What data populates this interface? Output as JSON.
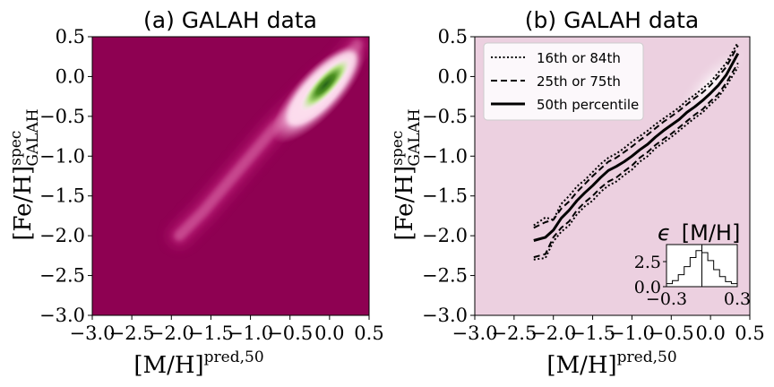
{
  "chart_data": [
    {
      "type": "heatmap",
      "title": "(a) GALAH data",
      "xlabel": "[M/H]",
      "xlabel_sup": "pred,50",
      "ylabel": "[Fe/H]",
      "ylabel_sup": "spec",
      "ylabel_sub": "GALAH",
      "xlim": [
        -3.0,
        0.5
      ],
      "ylim": [
        -3.0,
        0.5
      ],
      "xticks": [
        "−3.0",
        "−2.5",
        "−2.0",
        "−1.5",
        "−1.0",
        "−0.5",
        "0.0",
        "0.5"
      ],
      "yticks": [
        "−3.0",
        "−2.5",
        "−2.0",
        "−1.5",
        "−1.0",
        "−0.5",
        "0.0",
        "0.5"
      ],
      "xtick_values": [
        -3.0,
        -2.5,
        -2.0,
        -1.5,
        -1.0,
        -0.5,
        0.0,
        0.5
      ],
      "ytick_values": [
        -3.0,
        -2.5,
        -2.0,
        -1.5,
        -1.0,
        -0.5,
        0.0,
        0.5
      ],
      "colormap": "PiYG",
      "background_color": "#8e0152",
      "density_ridge": {
        "x": [
          -1.9,
          -1.6,
          -1.3,
          -1.0,
          -0.7,
          -0.4,
          -0.1,
          0.1,
          0.35
        ],
        "y": [
          -2.0,
          -1.7,
          -1.35,
          -1.0,
          -0.65,
          -0.35,
          -0.05,
          0.1,
          0.4
        ]
      },
      "density_peak": {
        "x": -0.05,
        "y": -0.1
      }
    },
    {
      "type": "line",
      "title": "(b) GALAH data",
      "xlabel": "[M/H]",
      "xlabel_sup": "pred,50",
      "ylabel": "[Fe/H]",
      "ylabel_sup": "spec",
      "ylabel_sub": "GALAH",
      "xlim": [
        -3.0,
        0.5
      ],
      "ylim": [
        -3.0,
        0.5
      ],
      "xticks": [
        "−3.0",
        "−2.5",
        "−2.0",
        "−1.5",
        "−1.0",
        "−0.5",
        "0.0",
        "0.5"
      ],
      "yticks": [
        "−3.0",
        "−2.5",
        "−2.0",
        "−1.5",
        "−1.0",
        "−0.5",
        "0.0",
        "0.5"
      ],
      "xtick_values": [
        -3.0,
        -2.5,
        -2.0,
        -1.5,
        -1.0,
        -0.5,
        0.0,
        0.5
      ],
      "ytick_values": [
        -3.0,
        -2.5,
        -2.0,
        -1.5,
        -1.0,
        -0.5,
        0.0,
        0.5
      ],
      "background_color": "#ecd0e0",
      "legend_position": "upper-left",
      "x": [
        -2.25,
        -2.1,
        -2.0,
        -1.9,
        -1.8,
        -1.7,
        -1.6,
        -1.5,
        -1.4,
        -1.3,
        -1.2,
        -1.1,
        -1.0,
        -0.9,
        -0.8,
        -0.7,
        -0.6,
        -0.5,
        -0.4,
        -0.3,
        -0.2,
        -0.1,
        0.0,
        0.1,
        0.2,
        0.35
      ],
      "series": [
        {
          "name": "16th or 84th",
          "style": "dotted",
          "values": [
            -1.87,
            -1.77,
            -1.8,
            -1.6,
            -1.5,
            -1.38,
            -1.3,
            -1.2,
            -1.1,
            -1.02,
            -0.97,
            -0.9,
            -0.82,
            -0.75,
            -0.68,
            -0.6,
            -0.53,
            -0.46,
            -0.39,
            -0.3,
            -0.23,
            -0.15,
            -0.07,
            0.05,
            0.17,
            0.43
          ]
        },
        {
          "name": "16th or 84th",
          "style": "dotted",
          "values": [
            -2.3,
            -2.28,
            -2.07,
            -1.95,
            -1.87,
            -1.73,
            -1.63,
            -1.56,
            -1.45,
            -1.37,
            -1.32,
            -1.24,
            -1.17,
            -1.07,
            -1.0,
            -0.9,
            -0.83,
            -0.76,
            -0.68,
            -0.6,
            -0.52,
            -0.45,
            -0.35,
            -0.26,
            -0.12,
            0.12
          ]
        },
        {
          "name": "25th or 75th",
          "style": "dashed",
          "values": [
            -1.9,
            -1.83,
            -1.8,
            -1.66,
            -1.57,
            -1.45,
            -1.35,
            -1.25,
            -1.16,
            -1.07,
            -1.02,
            -0.95,
            -0.88,
            -0.8,
            -0.73,
            -0.65,
            -0.57,
            -0.5,
            -0.43,
            -0.35,
            -0.27,
            -0.2,
            -0.11,
            0.0,
            0.12,
            0.39
          ]
        },
        {
          "name": "25th or 75th",
          "style": "dashed",
          "values": [
            -2.27,
            -2.23,
            -2.02,
            -1.9,
            -1.82,
            -1.68,
            -1.58,
            -1.5,
            -1.4,
            -1.32,
            -1.27,
            -1.19,
            -1.12,
            -1.02,
            -0.95,
            -0.86,
            -0.79,
            -0.72,
            -0.64,
            -0.56,
            -0.48,
            -0.41,
            -0.31,
            -0.22,
            -0.08,
            0.17
          ]
        },
        {
          "name": "50th percentile",
          "style": "solid",
          "values": [
            -2.06,
            -2.02,
            -1.93,
            -1.78,
            -1.68,
            -1.56,
            -1.46,
            -1.37,
            -1.27,
            -1.18,
            -1.13,
            -1.07,
            -1.0,
            -0.92,
            -0.85,
            -0.76,
            -0.68,
            -0.61,
            -0.54,
            -0.45,
            -0.38,
            -0.3,
            -0.21,
            -0.11,
            0.02,
            0.29
          ]
        }
      ],
      "legend": [
        "16th or 84th",
        "25th or 75th",
        "50th percentile"
      ],
      "inset": {
        "type": "histogram",
        "title_prefix": "ϵ",
        "title": "[M/H]",
        "xlim": [
          -0.3,
          0.3
        ],
        "ylim": [
          0,
          4.2
        ],
        "xticks": [
          "−0.3",
          "0.3"
        ],
        "xtick_values": [
          -0.3,
          0.3
        ],
        "yticks": [
          "0.0",
          "2.5"
        ],
        "ytick_values": [
          0.0,
          2.5
        ],
        "bin_edges": [
          -0.3,
          -0.25,
          -0.2,
          -0.15,
          -0.1,
          -0.05,
          0.0,
          0.05,
          0.1,
          0.15,
          0.2,
          0.25,
          0.3
        ],
        "values": [
          0.3,
          0.6,
          1.2,
          2.0,
          2.9,
          3.6,
          3.4,
          2.6,
          1.7,
          1.0,
          0.5,
          0.3
        ],
        "vline": 0.0
      }
    }
  ]
}
